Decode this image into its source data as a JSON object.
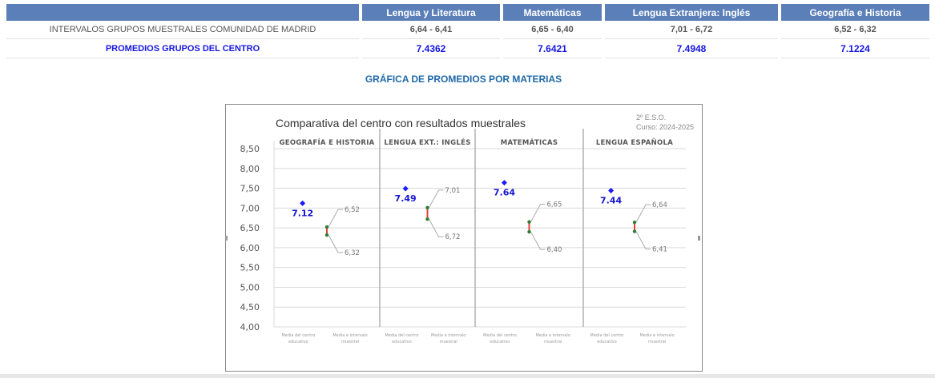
{
  "table": {
    "headers": [
      "Lengua y Literatura",
      "Matemáticas",
      "Lengua Extranjera: Inglés",
      "Geografía e Historia"
    ],
    "rows": [
      {
        "label": "INTERVALOS GRUPOS MUESTRALES COMUNIDAD DE MADRID",
        "values": [
          "6,64 - 6,41",
          "6,65 - 6,40",
          "7,01 - 6,72",
          "6,52 - 6,32"
        ]
      },
      {
        "label": "PROMEDIOS GRUPOS DEL CENTRO",
        "values": [
          "7.4362",
          "7.6421",
          "7.4948",
          "7.1224"
        ]
      }
    ]
  },
  "section_title": "GRÁFICA DE PROMEDIOS POR MATERIAS",
  "chart_data": {
    "type": "scatter",
    "title": "Comparativa del centro con resultados muestrales",
    "subtitle_lines": [
      "2º E.S.O.",
      "Curso: 2024-2025"
    ],
    "ylim": [
      4.0,
      8.5
    ],
    "yticks": [
      "8,50",
      "8,00",
      "7,50",
      "7,00",
      "6,50",
      "6,00",
      "5,50",
      "5,00",
      "4,50",
      "4,00"
    ],
    "ytick_values": [
      8.5,
      8.0,
      7.5,
      7.0,
      6.5,
      6.0,
      5.5,
      5.0,
      4.5,
      4.0
    ],
    "panels": [
      {
        "title": "GEOGRAFÍA E HISTORIA",
        "centre_mean": 7.12,
        "centre_label": "7.12",
        "interval_high": 6.52,
        "interval_low": 6.32,
        "high_label": "6,52",
        "low_label": "6,32"
      },
      {
        "title": "LENGUA EXT.: INGLÉS",
        "centre_mean": 7.49,
        "centre_label": "7.49",
        "interval_high": 7.01,
        "interval_low": 6.72,
        "high_label": "7,01",
        "low_label": "6,72"
      },
      {
        "title": "MATEMÁTICAS",
        "centre_mean": 7.64,
        "centre_label": "7.64",
        "interval_high": 6.65,
        "interval_low": 6.4,
        "high_label": "6,65",
        "low_label": "6,40"
      },
      {
        "title": "LENGUA ESPAÑOLA",
        "centre_mean": 7.44,
        "centre_label": "7.44",
        "interval_high": 6.64,
        "interval_low": 6.41,
        "high_label": "6,64",
        "low_label": "6,41"
      }
    ],
    "x_category_lines": [
      [
        "Media del centro",
        "educativo"
      ],
      [
        "Media e intervalo",
        "muestral"
      ]
    ],
    "colors": {
      "centre_marker": "#1a1aff",
      "interval_line": "#e2433a",
      "interval_marker": "#2e7d32",
      "label_grey": "#777777",
      "grid": "#d9d9d9",
      "panel_divider": "#b0b0b0"
    }
  }
}
